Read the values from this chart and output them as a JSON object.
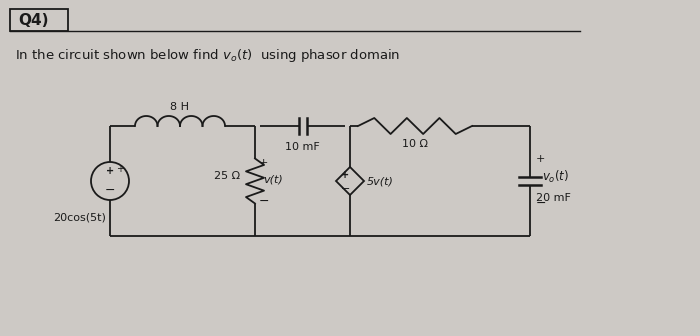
{
  "bg_color": "#cdc9c5",
  "fg_color": "#1a1a1a",
  "title": "Q4)",
  "question": "In the circuit shown below find $v_o(t)$  using phasor domain",
  "source_label": "20cos(5t)",
  "ind_label": "8 H",
  "res25_label": "25 Ω",
  "v_label": "v(t)",
  "cap10_label": "10 mF",
  "dep_label": "5v(t)",
  "res10_label": "10 Ω",
  "cap20_label": "20 mF",
  "vo_label": "v₀(t)"
}
